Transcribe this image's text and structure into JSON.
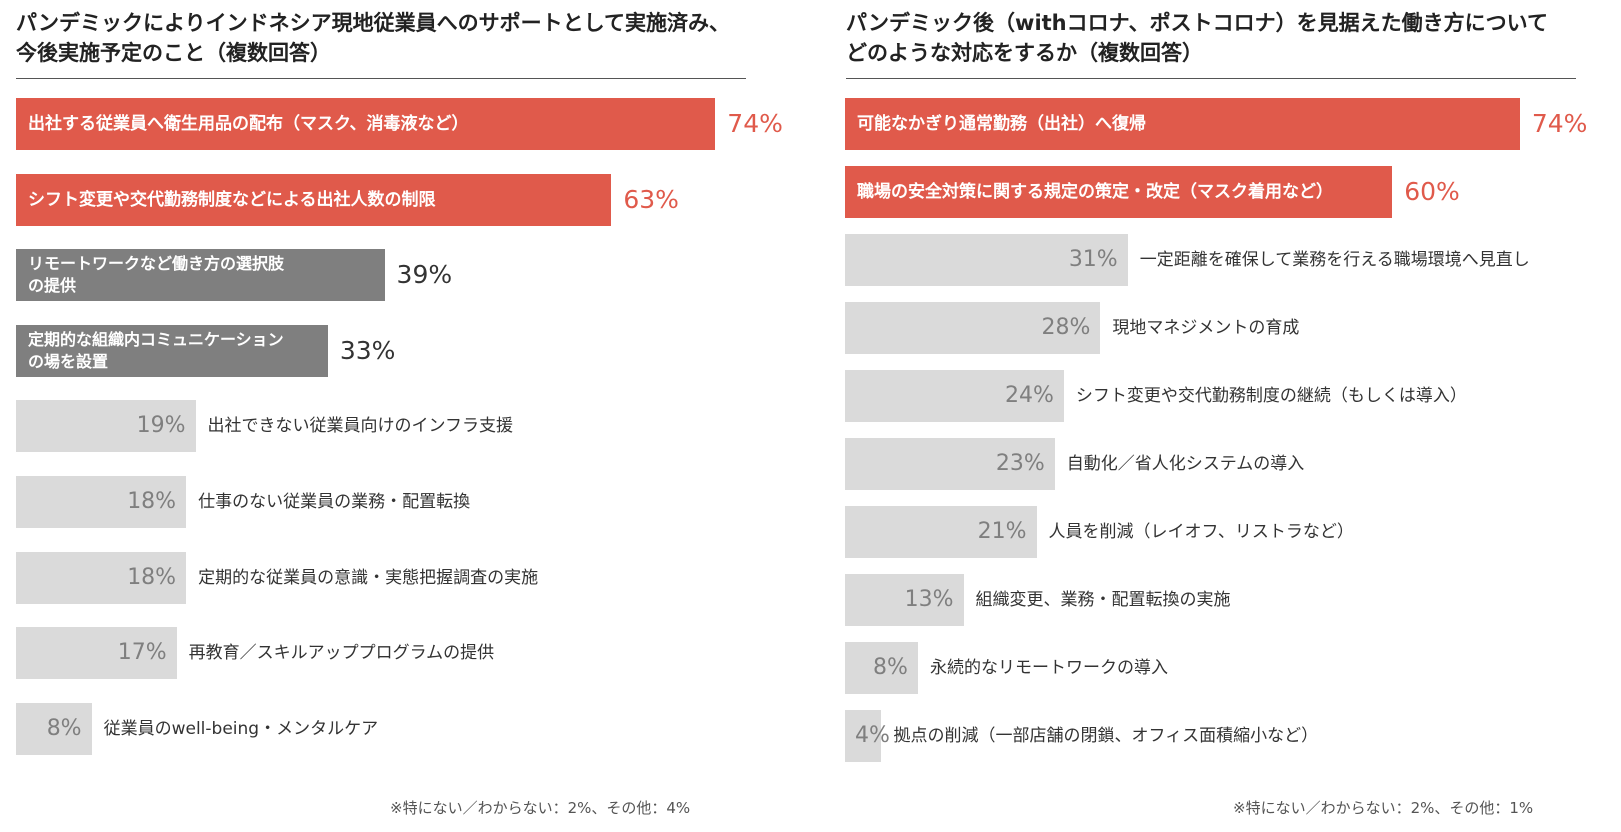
{
  "left": {
    "title_line1": "パンデミックによりインドネシア現地従業員へのサポートとして実施済み、",
    "title_line2": "今後実施予定のこと（複数回答）",
    "footnote": "※特にない／わからない：2%、その他：4%"
  },
  "right": {
    "title_line1": "パンデミック後（withコロナ、ポストコロナ）を見据えた働き方について",
    "title_line2": "どのような対応をするか（複数回答）",
    "footnote": "※特にない／わからない：2%、その他：1%"
  },
  "colors": {
    "red": "#e05a4b",
    "dark_gray": "#7f7f7f",
    "light_gray": "#dadada"
  },
  "chart_data": [
    {
      "type": "bar",
      "orientation": "horizontal",
      "title": "パンデミックによりインドネシア現地従業員へのサポートとして実施済み、今後実施予定のこと（複数回答）",
      "unit": "%",
      "categories": [
        "出社する従業員へ衛生用品の配布（マスク、消毒液など）",
        "シフト変更や交代勤務制度などによる出社人数の制限",
        "リモートワークなど働き方の選択肢の提供",
        "定期的な組織内コミュニケーションの場を設置",
        "出社できない従業員向けのインフラ支援",
        "仕事のない従業員の業務・配置転換",
        "定期的な従業員の意識・実態把握調査の実施",
        "再教育／スキルアッププログラムの提供",
        "従業員のwell-being・メンタルケア"
      ],
      "label_lines": [
        [
          "出社する従業員へ衛生用品の配布（マスク、消毒液など）"
        ],
        [
          "シフト変更や交代勤務制度などによる出社人数の制限"
        ],
        [
          "リモートワークなど働き方の選択肢",
          "の提供"
        ],
        [
          "定期的な組織内コミュニケーション",
          "の場を設置"
        ],
        [
          "出社できない従業員向けのインフラ支援"
        ],
        [
          "仕事のない従業員の業務・配置転換"
        ],
        [
          "定期的な従業員の意識・実態把握調査の実施"
        ],
        [
          "再教育／スキルアッププログラムの提供"
        ],
        [
          "従業員のwell-being・メンタルケア"
        ]
      ],
      "values": [
        74,
        63,
        39,
        33,
        19,
        18,
        18,
        17,
        8
      ],
      "value_labels": [
        "74%",
        "63%",
        "39%",
        "33%",
        "19%",
        "18%",
        "18%",
        "17%",
        "8%"
      ],
      "styles": [
        "red",
        "red",
        "gray",
        "gray",
        "light",
        "light",
        "light",
        "light",
        "light"
      ],
      "xlim": [
        0,
        100
      ]
    },
    {
      "type": "bar",
      "orientation": "horizontal",
      "title": "パンデミック後（withコロナ、ポストコロナ）を見据えた働き方についてどのような対応をするか（複数回答）",
      "unit": "%",
      "categories": [
        "可能なかぎり通常勤務（出社）へ復帰",
        "職場の安全対策に関する規定の策定・改定（マスク着用など）",
        "一定距離を確保して業務を行える職場環境へ見直し",
        "現地マネジメントの育成",
        "シフト変更や交代勤務制度の継続（もしくは導入）",
        "自動化／省人化システムの導入",
        "人員を削減（レイオフ、リストラなど）",
        "組織変更、業務・配置転換の実施",
        "永続的なリモートワークの導入",
        "拠点の削減（一部店舗の閉鎖、オフィス面積縮小など）"
      ],
      "label_lines": [
        [
          "可能なかぎり通常勤務（出社）へ復帰"
        ],
        [
          "職場の安全対策に関する規定の策定・改定（マスク着用など）"
        ],
        [
          "一定距離を確保して業務を行える職場環境へ見直し"
        ],
        [
          "現地マネジメントの育成"
        ],
        [
          "シフト変更や交代勤務制度の継続（もしくは導入）"
        ],
        [
          "自動化／省人化システムの導入"
        ],
        [
          "人員を削減（レイオフ、リストラなど）"
        ],
        [
          "組織変更、業務・配置転換の実施"
        ],
        [
          "永続的なリモートワークの導入"
        ],
        [
          "拠点の削減（一部店舗の閉鎖、オフィス面積縮小など）"
        ]
      ],
      "values": [
        74,
        60,
        31,
        28,
        24,
        23,
        21,
        13,
        8,
        4
      ],
      "value_labels": [
        "74%",
        "60%",
        "31%",
        "28%",
        "24%",
        "23%",
        "21%",
        "13%",
        "8%",
        "4%"
      ],
      "styles": [
        "red",
        "red",
        "light",
        "light",
        "light",
        "light",
        "light",
        "light",
        "light",
        "light"
      ],
      "xlim": [
        0,
        100
      ]
    }
  ]
}
